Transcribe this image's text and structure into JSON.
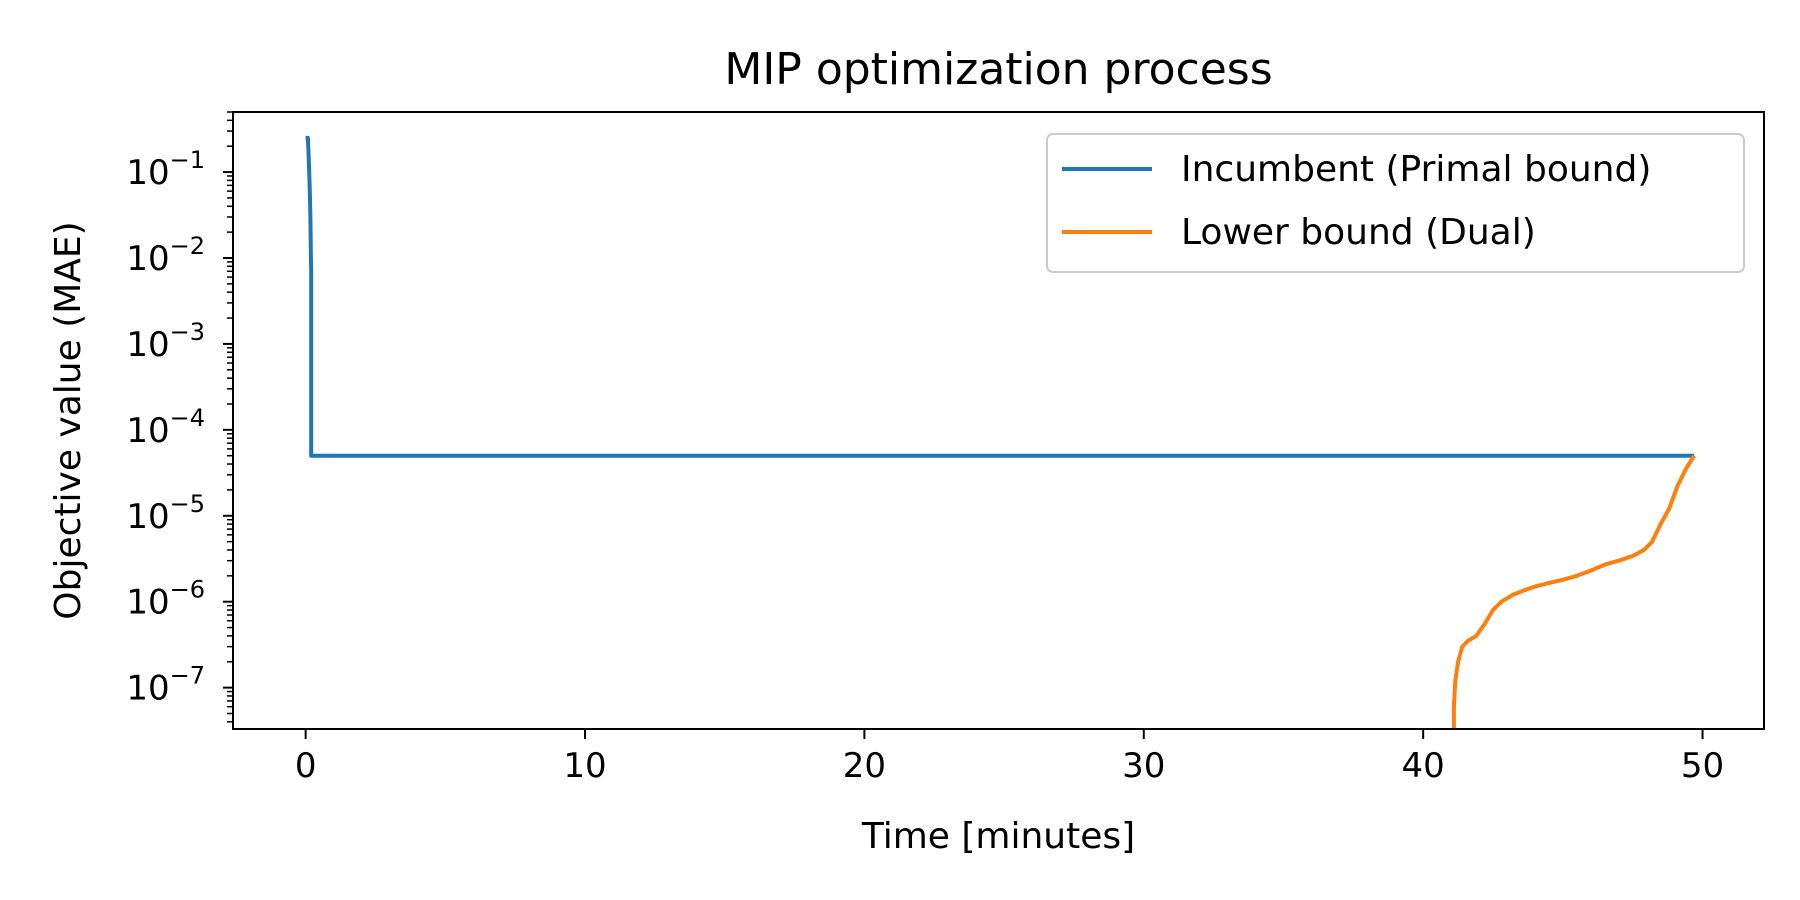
{
  "chart_data": {
    "type": "line",
    "title": "MIP optimization process",
    "xlabel": "Time [minutes]",
    "ylabel": "Objective value (MAE)",
    "xlim": [
      -2.6,
      52.2
    ],
    "ylim": [
      3.3e-08,
      0.5
    ],
    "yscale": "log",
    "grid": false,
    "legend_position": "upper right",
    "x_ticks": [
      0,
      10,
      20,
      30,
      40,
      50
    ],
    "x_tick_labels": [
      "0",
      "10",
      "20",
      "30",
      "40",
      "50"
    ],
    "y_tick_exponents": [
      -1,
      -2,
      -3,
      -4,
      -5,
      -6,
      -7
    ],
    "series": [
      {
        "name": "Incumbent (Primal bound)",
        "color": "#1f77b4",
        "x": [
          0.0,
          0.08,
          0.1,
          0.12,
          0.15,
          0.17,
          0.19,
          0.2,
          0.2,
          49.7
        ],
        "y": [
          0.25,
          0.25,
          0.18,
          0.12,
          0.06,
          0.03,
          0.01,
          0.0075,
          5e-05,
          5e-05
        ]
      },
      {
        "name": "Lower bound (Dual)",
        "color": "#ff7f0e",
        "x": [
          41.1,
          41.1,
          41.15,
          41.25,
          41.4,
          41.6,
          41.9,
          42.2,
          42.5,
          42.8,
          43.2,
          43.6,
          44.0,
          44.5,
          45.0,
          45.5,
          46.0,
          46.5,
          47.0,
          47.5,
          47.9,
          48.2,
          48.5,
          48.8,
          49.1,
          49.4,
          49.7
        ],
        "y": [
          3.3e-08,
          6e-08,
          1.2e-07,
          2e-07,
          3e-07,
          3.5e-07,
          4e-07,
          5.5e-07,
          8e-07,
          1e-06,
          1.2e-06,
          1.35e-06,
          1.5e-06,
          1.65e-06,
          1.8e-06,
          2e-06,
          2.3e-06,
          2.7e-06,
          3e-06,
          3.4e-06,
          4e-06,
          5e-06,
          8e-06,
          1.2e-05,
          2.2e-05,
          3.5e-05,
          5e-05
        ]
      }
    ]
  }
}
